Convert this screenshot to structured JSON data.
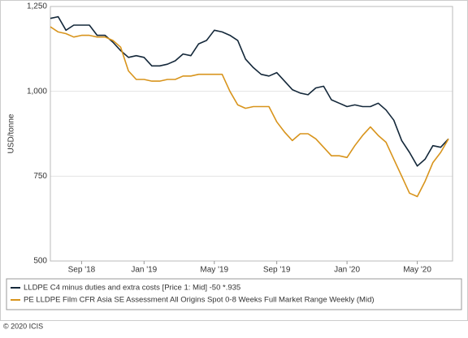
{
  "chart_data": {
    "type": "line",
    "ylabel": "USD/tonne",
    "categories": [
      null,
      null,
      null,
      null,
      "Sep '18",
      null,
      null,
      null,
      null,
      null,
      null,
      null,
      "Jan '19",
      null,
      null,
      null,
      null,
      null,
      null,
      null,
      null,
      "May '19",
      null,
      null,
      null,
      null,
      null,
      null,
      null,
      "Sep '19",
      null,
      null,
      null,
      null,
      null,
      null,
      null,
      null,
      "Jan '20",
      null,
      null,
      null,
      null,
      null,
      null,
      null,
      null,
      "May '20",
      null,
      null,
      null,
      null
    ],
    "series": [
      {
        "name": "LLDPE C4 minus duties and extra costs [Price 1: Mid] -50 *.935",
        "color": "#14283a",
        "values": [
          1215,
          1220,
          1180,
          1195,
          1195,
          1195,
          1165,
          1165,
          1145,
          1120,
          1100,
          1105,
          1100,
          1075,
          1075,
          1080,
          1090,
          1110,
          1105,
          1140,
          1150,
          1180,
          1175,
          1165,
          1150,
          1095,
          1070,
          1050,
          1045,
          1055,
          1030,
          1005,
          995,
          990,
          1010,
          1015,
          975,
          965,
          955,
          960,
          955,
          955,
          965,
          945,
          915,
          855,
          820,
          780,
          800,
          840,
          835,
          860
        ]
      },
      {
        "name": "PE LLDPE Film CFR Asia SE Assessment All Origins Spot 0-8 Weeks Full Market Range Weekly (Mid)",
        "color": "#d8941c",
        "values": [
          1190,
          1175,
          1170,
          1160,
          1165,
          1165,
          1160,
          1160,
          1150,
          1130,
          1060,
          1035,
          1035,
          1030,
          1030,
          1035,
          1035,
          1045,
          1045,
          1050,
          1050,
          1050,
          1050,
          1000,
          960,
          950,
          955,
          955,
          955,
          910,
          880,
          855,
          875,
          875,
          860,
          835,
          810,
          810,
          805,
          840,
          870,
          895,
          870,
          850,
          800,
          750,
          700,
          690,
          735,
          790,
          820,
          860
        ]
      }
    ],
    "ylim": [
      500,
      1250
    ],
    "yticks": [
      500,
      750,
      {
        "value": 1000,
        "label": "1,000"
      },
      {
        "value": 1250,
        "label": "1,250"
      }
    ],
    "grid": true
  },
  "copyright": "© 2020 ICIS"
}
